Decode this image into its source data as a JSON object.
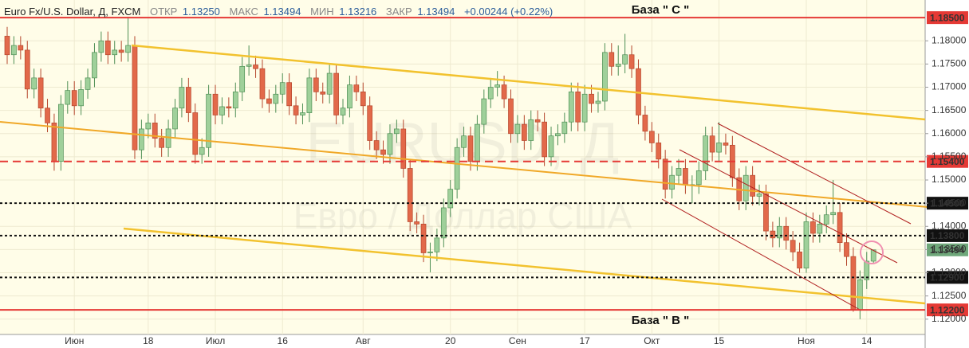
{
  "header": {
    "symbol": "Euro Fx/U.S. Dollar, Д, FXCM",
    "fields": [
      {
        "label": "ОТКР",
        "value": "1.13250"
      },
      {
        "label": "МАКС",
        "value": "1.13494"
      },
      {
        "label": "МИН",
        "value": "1.13216"
      },
      {
        "label": "ЗАКР",
        "value": "1.13494"
      }
    ],
    "change": "+0.00244 (+0.22%)"
  },
  "watermark": {
    "symbol": "EURUSD, Д",
    "description": "Евро / Доллар США"
  },
  "chart_data": {
    "type": "candlestick",
    "categories": [
      null,
      null,
      null,
      null,
      null,
      null,
      null,
      null,
      null,
      null,
      "Июн",
      null,
      null,
      null,
      null,
      null,
      null,
      null,
      null,
      null,
      null,
      "18",
      null,
      null,
      null,
      null,
      null,
      null,
      null,
      null,
      null,
      "Июл",
      null,
      null,
      null,
      null,
      null,
      null,
      null,
      null,
      null,
      "16",
      null,
      null,
      null,
      null,
      null,
      null,
      null,
      null,
      null,
      null,
      null,
      "Авг",
      null,
      null,
      null,
      null,
      null,
      null,
      null,
      null,
      null,
      null,
      null,
      null,
      "20",
      null,
      null,
      null,
      null,
      null,
      null,
      null,
      null,
      null,
      "Сен",
      null,
      null,
      null,
      null,
      null,
      null,
      null,
      null,
      null,
      "17",
      null,
      null,
      null,
      null,
      null,
      null,
      null,
      null,
      null,
      "Окт",
      null,
      null,
      null,
      null,
      null,
      null,
      null,
      null,
      null,
      "15",
      null,
      null,
      null,
      null,
      null,
      null,
      null,
      null,
      null,
      null,
      null,
      null,
      "Ноя",
      null,
      null,
      null,
      null,
      null,
      null,
      null,
      null,
      "14",
      null
    ],
    "open": [
      1.181,
      1.177,
      1.179,
      1.178,
      1.1696,
      1.172,
      1.1655,
      1.1623,
      1.154,
      1.1663,
      1.1693,
      1.166,
      1.1695,
      1.172,
      1.1775,
      1.18,
      1.177,
      1.178,
      1.1775,
      1.179,
      1.1565,
      1.161,
      1.1623,
      1.159,
      1.157,
      1.161,
      1.1655,
      1.17,
      1.1645,
      1.1555,
      1.157,
      1.1685,
      1.164,
      1.1658,
      1.1655,
      1.169,
      1.1745,
      1.1748,
      1.174,
      1.1675,
      1.1665,
      1.1685,
      1.171,
      1.166,
      1.164,
      1.1645,
      1.172,
      1.169,
      1.1685,
      1.173,
      1.164,
      1.1655,
      1.1705,
      1.169,
      1.166,
      1.1585,
      1.1565,
      1.1555,
      1.16,
      1.161,
      1.1525,
      1.141,
      1.1405,
      1.1343,
      1.1345,
      1.1375,
      1.144,
      1.148,
      1.157,
      1.1595,
      1.154,
      1.162,
      1.1675,
      1.17,
      1.1705,
      1.1675,
      1.16,
      1.162,
      1.1585,
      1.163,
      1.1625,
      1.155,
      1.1595,
      1.16,
      1.1625,
      1.169,
      1.1625,
      1.1685,
      1.1665,
      1.167,
      1.1775,
      1.1745,
      1.175,
      1.177,
      1.174,
      1.164,
      1.1605,
      1.158,
      1.1545,
      1.148,
      1.151,
      1.1525,
      1.149,
      1.149,
      1.152,
      1.1595,
      1.156,
      1.158,
      1.1575,
      1.1505,
      1.1455,
      1.151,
      1.1465,
      1.147,
      1.139,
      1.1375,
      1.14,
      1.137,
      1.1345,
      1.131,
      1.141,
      1.1385,
      1.1405,
      1.1425,
      1.143,
      1.1365,
      1.1335,
      1.122,
      1.1285,
      1.1325
    ],
    "high": [
      1.183,
      1.181,
      1.181,
      1.18,
      1.174,
      1.174,
      1.1675,
      1.1643,
      1.1683,
      1.1713,
      1.1713,
      1.1715,
      1.174,
      1.1795,
      1.182,
      1.182,
      1.18,
      1.18,
      1.1852,
      1.181,
      1.163,
      1.1643,
      1.1643,
      1.161,
      1.163,
      1.1675,
      1.172,
      1.172,
      1.1665,
      1.159,
      1.1705,
      1.1705,
      1.1678,
      1.1678,
      1.171,
      1.1765,
      1.179,
      1.1768,
      1.176,
      1.1695,
      1.1705,
      1.173,
      1.173,
      1.168,
      1.1665,
      1.174,
      1.174,
      1.171,
      1.175,
      1.175,
      1.1675,
      1.1725,
      1.1725,
      1.171,
      1.168,
      1.1605,
      1.1585,
      1.162,
      1.163,
      1.163,
      1.1545,
      1.143,
      1.1425,
      1.1365,
      1.1395,
      1.146,
      1.15,
      1.159,
      1.1615,
      1.1615,
      1.164,
      1.1695,
      1.172,
      1.1735,
      1.1725,
      1.1695,
      1.164,
      1.164,
      1.165,
      1.165,
      1.1645,
      1.1615,
      1.162,
      1.1645,
      1.171,
      1.171,
      1.1705,
      1.1705,
      1.169,
      1.1795,
      1.1795,
      1.179,
      1.1815,
      1.179,
      1.176,
      1.166,
      1.1625,
      1.16,
      1.1565,
      1.153,
      1.1545,
      1.1545,
      1.151,
      1.154,
      1.1615,
      1.1615,
      1.1625,
      1.16,
      1.1595,
      1.1525,
      1.153,
      1.153,
      1.149,
      1.149,
      1.141,
      1.142,
      1.142,
      1.139,
      1.1365,
      1.143,
      1.143,
      1.1425,
      1.1445,
      1.15,
      1.145,
      1.1385,
      1.1355,
      1.1305,
      1.1345,
      1.13494
    ],
    "low": [
      1.175,
      1.175,
      1.176,
      1.1676,
      1.1676,
      1.1635,
      1.1603,
      1.152,
      1.152,
      1.1643,
      1.164,
      1.164,
      1.1675,
      1.17,
      1.1755,
      1.175,
      1.175,
      1.1755,
      1.1755,
      1.1545,
      1.1545,
      1.159,
      1.157,
      1.155,
      1.155,
      1.159,
      1.1635,
      1.1625,
      1.1535,
      1.1535,
      1.155,
      1.162,
      1.162,
      1.1635,
      1.1635,
      1.167,
      1.1725,
      1.172,
      1.1655,
      1.1645,
      1.1645,
      1.1665,
      1.164,
      1.162,
      1.162,
      1.1625,
      1.167,
      1.1665,
      1.1665,
      1.162,
      1.162,
      1.1635,
      1.167,
      1.164,
      1.1565,
      1.1545,
      1.1535,
      1.1535,
      1.158,
      1.1505,
      1.139,
      1.1385,
      1.1323,
      1.1301,
      1.1325,
      1.1355,
      1.142,
      1.146,
      1.155,
      1.152,
      1.152,
      1.16,
      1.1655,
      1.168,
      1.1655,
      1.158,
      1.158,
      1.1565,
      1.1565,
      1.1605,
      1.153,
      1.153,
      1.1575,
      1.158,
      1.1605,
      1.1605,
      1.1605,
      1.1645,
      1.1645,
      1.165,
      1.1725,
      1.1725,
      1.173,
      1.172,
      1.162,
      1.1585,
      1.156,
      1.1525,
      1.146,
      1.146,
      1.149,
      1.147,
      1.145,
      1.147,
      1.15,
      1.154,
      1.154,
      1.1555,
      1.1485,
      1.1435,
      1.1435,
      1.1445,
      1.1445,
      1.137,
      1.1355,
      1.1355,
      1.135,
      1.1325,
      1.13,
      1.13,
      1.1365,
      1.1365,
      1.1385,
      1.1405,
      1.1345,
      1.1315,
      1.1216,
      1.12,
      1.1265,
      1.13216
    ],
    "close": [
      1.177,
      1.179,
      1.178,
      1.1696,
      1.172,
      1.1655,
      1.1623,
      1.154,
      1.1663,
      1.1693,
      1.166,
      1.1695,
      1.172,
      1.1775,
      1.18,
      1.177,
      1.178,
      1.1775,
      1.179,
      1.1565,
      1.161,
      1.1623,
      1.159,
      1.157,
      1.161,
      1.1655,
      1.17,
      1.1645,
      1.1555,
      1.157,
      1.1685,
      1.164,
      1.1658,
      1.1655,
      1.169,
      1.1745,
      1.1748,
      1.174,
      1.1675,
      1.1665,
      1.1685,
      1.171,
      1.166,
      1.164,
      1.1645,
      1.172,
      1.169,
      1.1685,
      1.173,
      1.164,
      1.1655,
      1.1705,
      1.169,
      1.166,
      1.1585,
      1.1565,
      1.1555,
      1.16,
      1.161,
      1.1525,
      1.141,
      1.1405,
      1.1343,
      1.1345,
      1.1375,
      1.144,
      1.148,
      1.157,
      1.1595,
      1.154,
      1.162,
      1.1675,
      1.17,
      1.1705,
      1.1675,
      1.16,
      1.162,
      1.1585,
      1.163,
      1.1625,
      1.155,
      1.1595,
      1.16,
      1.1625,
      1.169,
      1.1625,
      1.1685,
      1.1665,
      1.167,
      1.1775,
      1.1745,
      1.175,
      1.177,
      1.174,
      1.164,
      1.1605,
      1.158,
      1.1545,
      1.148,
      1.151,
      1.1525,
      1.149,
      1.149,
      1.152,
      1.1595,
      1.156,
      1.158,
      1.1575,
      1.1505,
      1.1455,
      1.151,
      1.1465,
      1.147,
      1.139,
      1.1375,
      1.14,
      1.137,
      1.1345,
      1.131,
      1.141,
      1.1385,
      1.1405,
      1.1425,
      1.143,
      1.1365,
      1.1335,
      1.122,
      1.1285,
      1.1325,
      1.13494
    ],
    "up_color": "#9fd09a",
    "down_color": "#e2694a",
    "ylim": [
      1.1167,
      1.1888
    ],
    "yticks": [
      {
        "value": 1.12,
        "label": "1.12000"
      },
      {
        "value": 1.125,
        "label": "1.12500"
      },
      {
        "value": 1.13,
        "label": "1.13000"
      },
      {
        "value": 1.135,
        "label": "1.13500"
      },
      {
        "value": 1.14,
        "label": "1.14000"
      },
      {
        "value": 1.145,
        "label": "1.14500"
      },
      {
        "value": 1.15,
        "label": "1.15000"
      },
      {
        "value": 1.155,
        "label": "1.15500"
      },
      {
        "value": 1.16,
        "label": "1.16000"
      },
      {
        "value": 1.165,
        "label": "1.16500"
      },
      {
        "value": 1.17,
        "label": "1.17000"
      },
      {
        "value": 1.175,
        "label": "1.17500"
      },
      {
        "value": 1.18,
        "label": "1.18000"
      }
    ],
    "grid": true,
    "levels": [
      {
        "value": 1.185,
        "label": "1.18500",
        "color": "#e53935",
        "style": "solid"
      },
      {
        "value": 1.154,
        "label": "1.15400",
        "color": "#e53935",
        "style": "dashed"
      },
      {
        "value": 1.145,
        "label": "1.14500",
        "color": "#111111",
        "style": "dotted"
      },
      {
        "value": 1.138,
        "label": "1.13800",
        "color": "#111111",
        "style": "dotted"
      },
      {
        "value": 1.13494,
        "label": "1.13494",
        "color": "#6fa77a",
        "style": "none"
      },
      {
        "value": 1.129,
        "label": "1.12900",
        "color": "#111111",
        "style": "dotted"
      },
      {
        "value": 1.122,
        "label": "1.12200",
        "color": "#e53935",
        "style": "solid"
      }
    ],
    "annotations": [
      {
        "text": "База  \" С \"",
        "value": 1.185
      },
      {
        "text": "База  \" В \"",
        "value": 1.122
      }
    ]
  }
}
